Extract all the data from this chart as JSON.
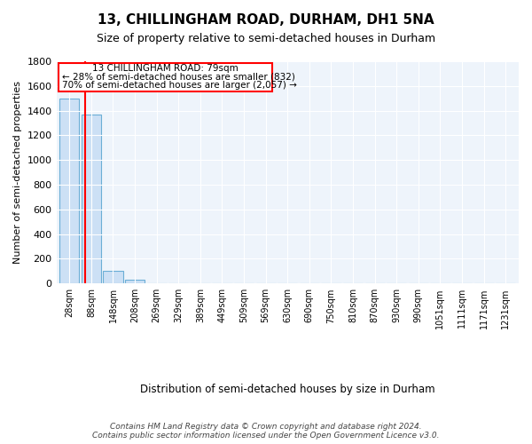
{
  "title": "13, CHILLINGHAM ROAD, DURHAM, DH1 5NA",
  "subtitle": "Size of property relative to semi-detached houses in Durham",
  "xlabel": "Distribution of semi-detached houses by size in Durham",
  "ylabel": "Number of semi-detached properties",
  "bar_categories": [
    "28sqm",
    "88sqm",
    "148sqm",
    "208sqm",
    "269sqm",
    "329sqm",
    "389sqm",
    "449sqm",
    "509sqm",
    "569sqm",
    "630sqm",
    "690sqm",
    "750sqm",
    "810sqm",
    "870sqm",
    "930sqm",
    "990sqm",
    "1051sqm",
    "1111sqm",
    "1171sqm",
    "1231sqm"
  ],
  "bar_values": [
    1500,
    1370,
    100,
    30,
    0,
    0,
    0,
    0,
    0,
    0,
    0,
    0,
    0,
    0,
    0,
    0,
    0,
    0,
    0,
    0,
    0
  ],
  "bar_color": "#cce0f5",
  "bar_edge_color": "#6baed6",
  "ylim": [
    0,
    1800
  ],
  "yticks": [
    0,
    200,
    400,
    600,
    800,
    1000,
    1200,
    1400,
    1600,
    1800
  ],
  "property_label": "13 CHILLINGHAM ROAD: 79sqm",
  "pct_smaller": 28,
  "count_smaller": 832,
  "pct_larger": 70,
  "count_larger": 2057,
  "red_line_x": 0.72,
  "background_color": "#eef4fb",
  "footer_text": "Contains HM Land Registry data © Crown copyright and database right 2024.\nContains public sector information licensed under the Open Government Licence v3.0."
}
